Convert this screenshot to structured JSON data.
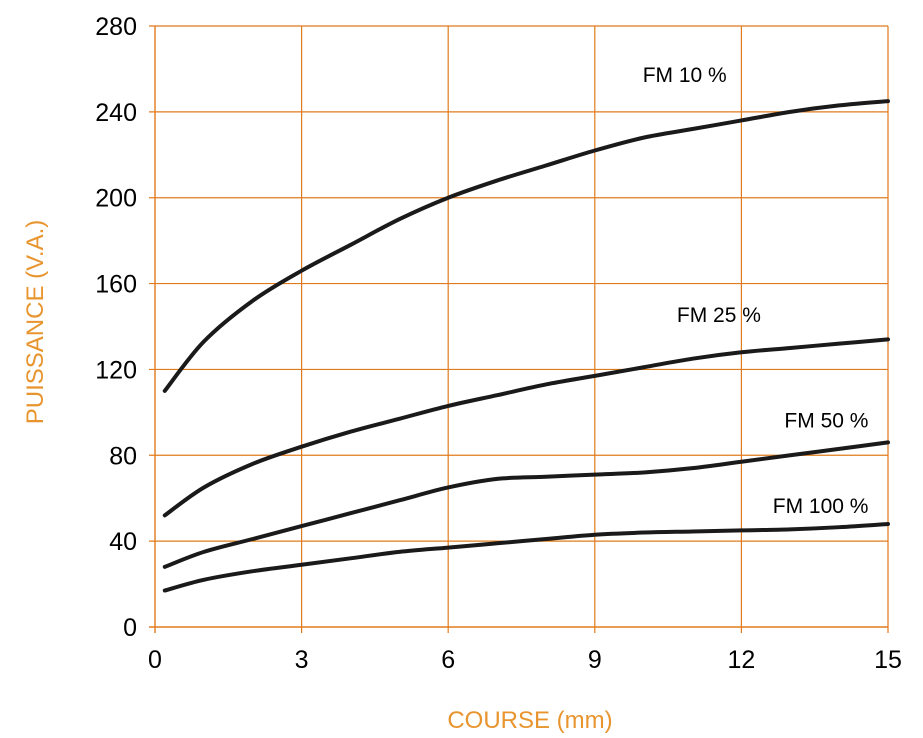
{
  "chart_data": {
    "type": "line",
    "title": "",
    "xlabel": "COURSE (mm)",
    "ylabel": "PUISSANCE  (V.A.)",
    "label_color": "#e8952f",
    "grid_color": "#e07b1c",
    "line_color": "#1a1a1a",
    "grid": true,
    "xlim": [
      0,
      15
    ],
    "ylim": [
      0,
      280
    ],
    "x_ticks": [
      0,
      3,
      6,
      9,
      12,
      15
    ],
    "y_ticks": [
      0,
      40,
      80,
      120,
      160,
      200,
      240,
      280
    ],
    "series": [
      {
        "name": "FM 10 %",
        "x": [
          0.2,
          1,
          2,
          3,
          4,
          5,
          6,
          7,
          8,
          9,
          10,
          11,
          12,
          13,
          14,
          15
        ],
        "values": [
          110,
          133,
          152,
          166,
          178,
          190,
          200,
          208,
          215,
          222,
          228,
          232,
          236,
          240,
          243,
          245
        ]
      },
      {
        "name": "FM 25 %",
        "x": [
          0.2,
          1,
          2,
          3,
          4,
          5,
          6,
          7,
          8,
          9,
          10,
          11,
          12,
          13,
          14,
          15
        ],
        "values": [
          52,
          65,
          76,
          84,
          91,
          97,
          103,
          108,
          113,
          117,
          121,
          125,
          128,
          130,
          132,
          134
        ]
      },
      {
        "name": "FM 50 %",
        "x": [
          0.2,
          1,
          2,
          3,
          4,
          5,
          6,
          7,
          8,
          9,
          10,
          11,
          12,
          13,
          14,
          15
        ],
        "values": [
          28,
          35,
          41,
          47,
          53,
          59,
          65,
          69,
          70,
          71,
          72,
          74,
          77,
          80,
          83,
          86
        ]
      },
      {
        "name": "FM 100 %",
        "x": [
          0.2,
          1,
          2,
          3,
          4,
          5,
          6,
          7,
          8,
          9,
          10,
          11,
          12,
          13,
          14,
          15
        ],
        "values": [
          17,
          22,
          26,
          29,
          32,
          35,
          37,
          39,
          41,
          43,
          44,
          44.5,
          45,
          45.5,
          46.5,
          48
        ]
      }
    ]
  }
}
